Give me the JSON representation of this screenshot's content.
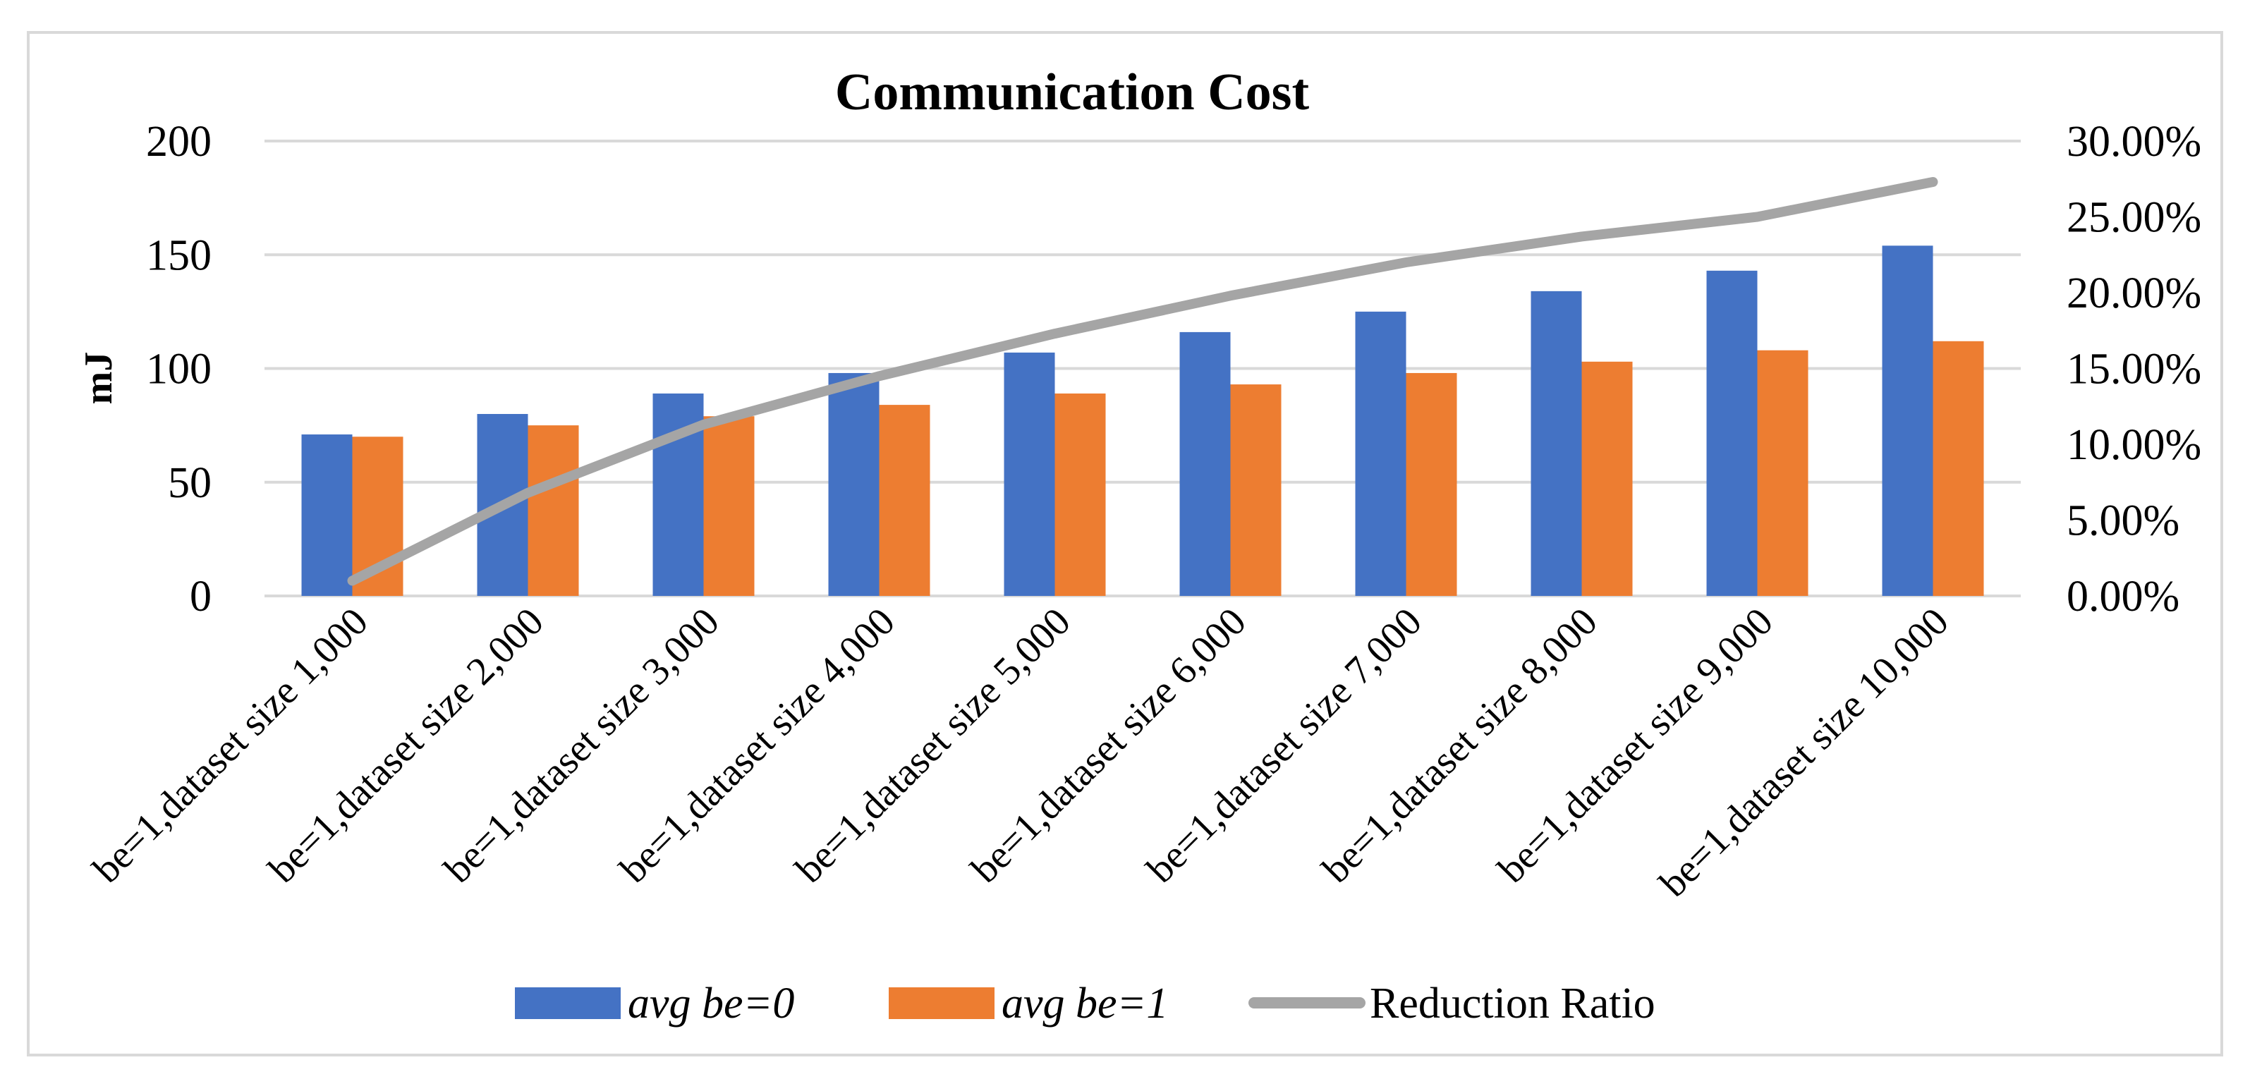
{
  "chart_data": {
    "type": "bar",
    "title": "Communication Cost",
    "xlabel": "",
    "ylabel": "mJ",
    "ylim": [
      0,
      200
    ],
    "y_ticks": [
      "0",
      "50",
      "100",
      "150",
      "200"
    ],
    "y2lim": [
      0,
      0.3
    ],
    "y2_ticks": [
      "0.00%",
      "5.00%",
      "10.00%",
      "15.00%",
      "20.00%",
      "25.00%",
      "30.00%"
    ],
    "grid": true,
    "legend_position": "bottom",
    "categories": [
      "be=1,dataset size 1,000",
      "be=1,dataset size 2,000",
      "be=1,dataset size 3,000",
      "be=1,dataset size 4,000",
      "be=1,dataset size 5,000",
      "be=1,dataset size 6,000",
      "be=1,dataset size 7,000",
      "be=1,dataset size 8,000",
      "be=1,dataset size 9,000",
      "be=1,dataset size 10,000"
    ],
    "series": [
      {
        "name": "avg be=0",
        "type": "bar",
        "axis": "left",
        "color": "#4472c4",
        "values": [
          71,
          80,
          89,
          98,
          107,
          116,
          125,
          134,
          143,
          154
        ]
      },
      {
        "name": "avg be=1",
        "type": "bar",
        "axis": "left",
        "color": "#ed7d31",
        "values": [
          70,
          75,
          79,
          84,
          89,
          93,
          98,
          103,
          108,
          112
        ]
      },
      {
        "name": "Reduction Ratio",
        "type": "line",
        "axis": "right",
        "color": "#a5a5a5",
        "values": [
          0.01,
          0.068,
          0.113,
          0.145,
          0.173,
          0.198,
          0.22,
          0.237,
          0.25,
          0.273
        ]
      }
    ]
  }
}
